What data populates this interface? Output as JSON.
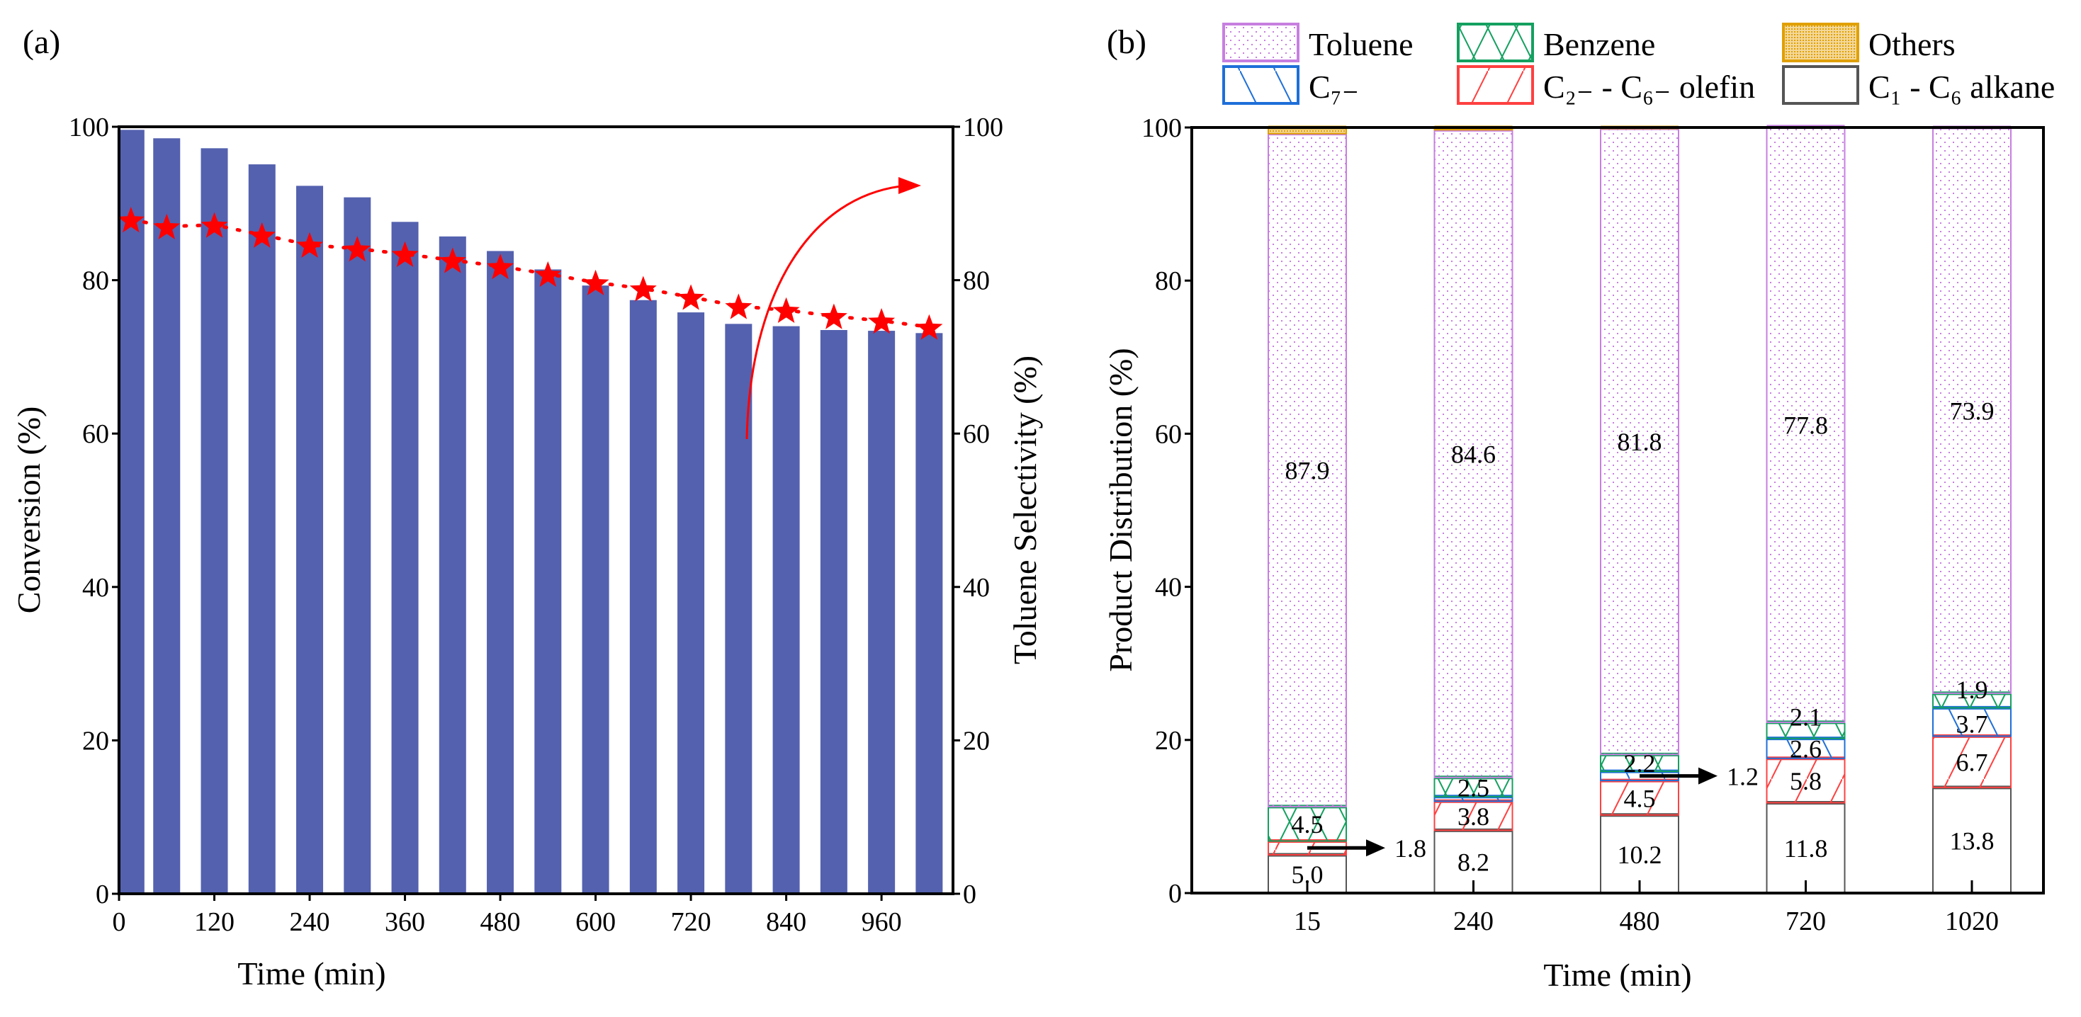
{
  "chart_data": [
    {
      "panel": "(a)",
      "type": "bar+line",
      "xlabel": "Time (min)",
      "ylabel": "Conversion (%)",
      "y2label": "Toluene Selectivity (%)",
      "xlim": [
        0,
        1050
      ],
      "ylim": [
        0,
        100
      ],
      "y2lim": [
        0,
        100
      ],
      "xticks": [
        "0",
        "120",
        "240",
        "360",
        "480",
        "600",
        "720",
        "840",
        "960"
      ],
      "yticks": [
        "0",
        "20",
        "40",
        "60",
        "80",
        "100"
      ],
      "y2ticks": [
        "0",
        "20",
        "40",
        "60",
        "80",
        "100"
      ],
      "x": [
        15,
        60,
        120,
        180,
        240,
        300,
        360,
        420,
        480,
        540,
        600,
        660,
        720,
        780,
        840,
        900,
        960,
        1020
      ],
      "series": [
        {
          "name": "Conversion",
          "type": "bar",
          "axis": "left",
          "color": "#5461AF",
          "values": [
            99.6,
            98.5,
            97.2,
            95.1,
            92.3,
            90.8,
            87.6,
            85.7,
            83.8,
            81.4,
            79.3,
            77.4,
            75.8,
            74.3,
            74.0,
            73.5,
            73.4,
            73.1
          ]
        },
        {
          "name": "Toluene Selectivity",
          "type": "line",
          "marker": "star",
          "axis": "right",
          "color": "#FF0000",
          "values": [
            87.9,
            87.0,
            87.2,
            85.9,
            84.6,
            84.1,
            83.4,
            82.6,
            81.8,
            80.8,
            79.7,
            78.9,
            77.8,
            76.6,
            76.1,
            75.3,
            74.7,
            73.9
          ]
        }
      ]
    },
    {
      "panel": "(b)",
      "type": "stacked-bar",
      "xlabel": "Time (min)",
      "ylabel": "Product Distribution (%)",
      "ylim": [
        0,
        100
      ],
      "yticks": [
        "0",
        "20",
        "40",
        "60",
        "80",
        "100"
      ],
      "categories": [
        "15",
        "240",
        "480",
        "720",
        "1020"
      ],
      "legend_position": "top",
      "series": [
        {
          "name": "C₁ - C₆ alkane",
          "color": "#555555",
          "pattern": "none",
          "values": [
            5.0,
            8.2,
            10.2,
            11.8,
            13.8
          ],
          "labels": [
            "5.0",
            "8.2",
            "10.2",
            "11.8",
            "13.8"
          ]
        },
        {
          "name": "C₂₋ - C₆₋ olefin",
          "color": "#FF4040",
          "pattern": "diag-right",
          "values": [
            1.8,
            3.8,
            4.5,
            5.8,
            6.7
          ],
          "labels": [
            "1.8",
            "3.8",
            "4.5",
            "5.8",
            "6.7"
          ]
        },
        {
          "name": "C₇₋",
          "color": "#1E6FD9",
          "pattern": "diag-left",
          "values": [
            0.0,
            0.6,
            1.2,
            2.6,
            3.7
          ],
          "labels": [
            "",
            "",
            "1.2",
            "2.6",
            "3.7"
          ]
        },
        {
          "name": "Benzene",
          "color": "#14A060",
          "pattern": "cross",
          "values": [
            4.5,
            2.5,
            2.2,
            2.1,
            1.9
          ],
          "labels": [
            "4.5",
            "2.5",
            "2.2",
            "2.1",
            "1.9"
          ]
        },
        {
          "name": "Toluene",
          "color": "#C77FE0",
          "pattern": "dots",
          "values": [
            87.9,
            84.6,
            81.8,
            77.8,
            73.9
          ],
          "labels": [
            "87.9",
            "84.6",
            "81.8",
            "77.8",
            "73.9"
          ]
        },
        {
          "name": "Others",
          "color": "#E0A000",
          "pattern": "dense",
          "values": [
            0.8,
            0.3,
            0.1,
            0.0,
            0.0
          ],
          "labels": [
            "",
            "",
            "",
            "",
            ""
          ]
        }
      ],
      "legend_order": [
        4,
        3,
        5,
        2,
        1,
        0
      ],
      "outside_labels": [
        {
          "category": "15",
          "series": 1,
          "text": "1.8"
        },
        {
          "category": "480",
          "series": 2,
          "text": "1.2"
        }
      ]
    }
  ]
}
